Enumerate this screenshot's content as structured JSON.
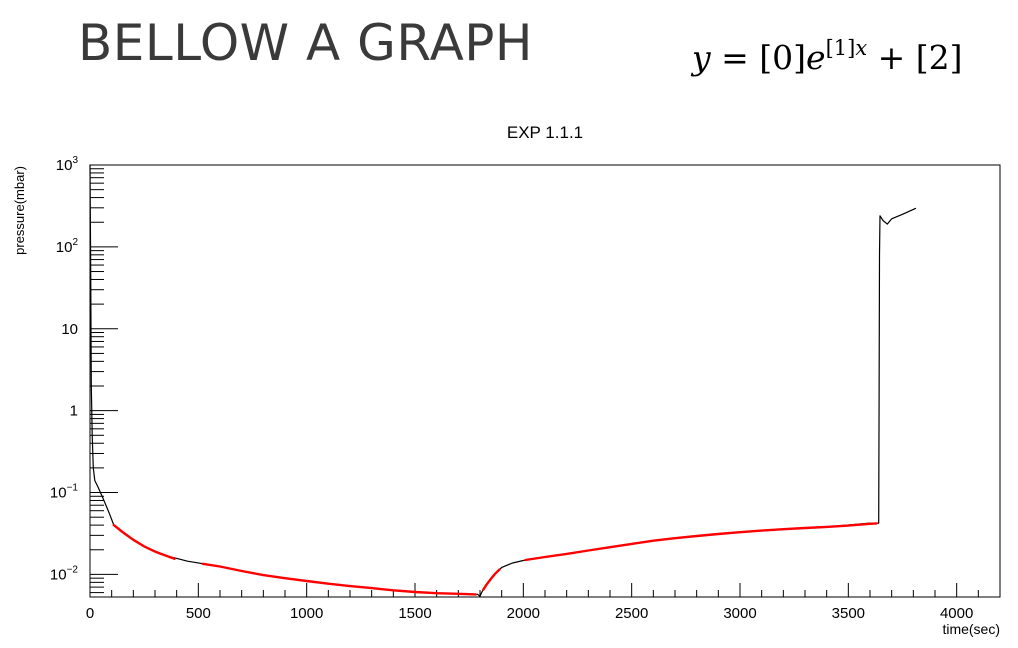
{
  "slide": {
    "title": "BELLOW A GRAPH"
  },
  "formula": {
    "lhs": "y",
    "eq": " = [0]",
    "base": "e",
    "exp_coeff": "[1]",
    "exp_var": "x",
    "tail": " + [2]"
  },
  "chart_data": {
    "type": "line",
    "title": "EXP 1.1.1",
    "xlabel": "time(sec)",
    "ylabel": "pressure(mbar)",
    "xlim": [
      0,
      4200
    ],
    "ylim": [
      0.0053,
      1000
    ],
    "yscale": "log",
    "grid": false,
    "x_ticks": [
      0,
      500,
      1000,
      1500,
      2000,
      2500,
      3000,
      3500,
      4000
    ],
    "x_tick_labels": [
      "0",
      "500",
      "1000",
      "1500",
      "2000",
      "2500",
      "3000",
      "3500",
      "4000"
    ],
    "y_ticks": [
      0.01,
      0.1,
      1,
      10,
      100,
      1000
    ],
    "y_tick_labels": [
      {
        "base": "10",
        "exp": "−2"
      },
      {
        "base": "10",
        "exp": "−1"
      },
      {
        "base": "1",
        "exp": ""
      },
      {
        "base": "10",
        "exp": ""
      },
      {
        "base": "10",
        "exp": "2"
      },
      {
        "base": "10",
        "exp": "3"
      }
    ],
    "series": [
      {
        "color": "#000000",
        "points": [
          [
            0,
            1000
          ],
          [
            3,
            50
          ],
          [
            6,
            2
          ],
          [
            10,
            0.5
          ],
          [
            15,
            0.2
          ],
          [
            22,
            0.14
          ],
          [
            35,
            0.12
          ],
          [
            60,
            0.085
          ],
          [
            90,
            0.055
          ],
          [
            110,
            0.04
          ],
          [
            150,
            0.033
          ],
          [
            250,
            0.022
          ],
          [
            350,
            0.017
          ],
          [
            450,
            0.0145
          ],
          [
            600,
            0.0125
          ],
          [
            800,
            0.0098
          ],
          [
            1000,
            0.0083
          ],
          [
            1200,
            0.0072
          ],
          [
            1400,
            0.0064
          ],
          [
            1600,
            0.0059
          ],
          [
            1790,
            0.0057
          ],
          [
            1800,
            0.0054
          ],
          [
            1810,
            0.0062
          ],
          [
            1830,
            0.0075
          ],
          [
            1860,
            0.0095
          ],
          [
            1900,
            0.0122
          ],
          [
            1950,
            0.0138
          ],
          [
            2000,
            0.0148
          ],
          [
            2200,
            0.0178
          ],
          [
            2400,
            0.0215
          ],
          [
            2600,
            0.0258
          ],
          [
            2800,
            0.0295
          ],
          [
            3000,
            0.0328
          ],
          [
            3200,
            0.0357
          ],
          [
            3400,
            0.038
          ],
          [
            3600,
            0.0423
          ],
          [
            3640,
            0.0423
          ],
          [
            3642,
            1.5
          ],
          [
            3644,
            80
          ],
          [
            3646,
            240
          ],
          [
            3660,
            210
          ],
          [
            3680,
            190
          ],
          [
            3700,
            220
          ],
          [
            3750,
            250
          ],
          [
            3810,
            295
          ]
        ]
      },
      {
        "color": "#ff0000",
        "points": [
          [
            110,
            0.04
          ],
          [
            150,
            0.033
          ],
          [
            200,
            0.0265
          ],
          [
            250,
            0.022
          ],
          [
            300,
            0.019
          ],
          [
            350,
            0.017
          ],
          [
            390,
            0.0155
          ]
        ]
      },
      {
        "color": "#ff0000",
        "points": [
          [
            520,
            0.0135
          ],
          [
            600,
            0.0125
          ],
          [
            700,
            0.011
          ],
          [
            800,
            0.0098
          ],
          [
            900,
            0.009
          ],
          [
            1000,
            0.0083
          ],
          [
            1100,
            0.0077
          ],
          [
            1200,
            0.0072
          ],
          [
            1300,
            0.0068
          ],
          [
            1400,
            0.0064
          ],
          [
            1500,
            0.0061
          ],
          [
            1600,
            0.0059
          ],
          [
            1700,
            0.0058
          ],
          [
            1780,
            0.0057
          ]
        ]
      },
      {
        "color": "#ff0000",
        "points": [
          [
            1815,
            0.0065
          ],
          [
            1830,
            0.0075
          ],
          [
            1850,
            0.0088
          ],
          [
            1870,
            0.0102
          ],
          [
            1890,
            0.0115
          ]
        ]
      },
      {
        "color": "#ff0000",
        "points": [
          [
            2010,
            0.015
          ],
          [
            2100,
            0.0163
          ],
          [
            2200,
            0.0178
          ],
          [
            2300,
            0.0196
          ],
          [
            2400,
            0.0215
          ],
          [
            2500,
            0.0236
          ],
          [
            2600,
            0.0258
          ],
          [
            2700,
            0.0277
          ],
          [
            2800,
            0.0295
          ],
          [
            2900,
            0.0312
          ],
          [
            3000,
            0.0328
          ],
          [
            3100,
            0.0343
          ],
          [
            3200,
            0.0357
          ],
          [
            3300,
            0.0369
          ],
          [
            3400,
            0.038
          ],
          [
            3500,
            0.0395
          ],
          [
            3600,
            0.0415
          ],
          [
            3630,
            0.042
          ]
        ]
      }
    ]
  }
}
